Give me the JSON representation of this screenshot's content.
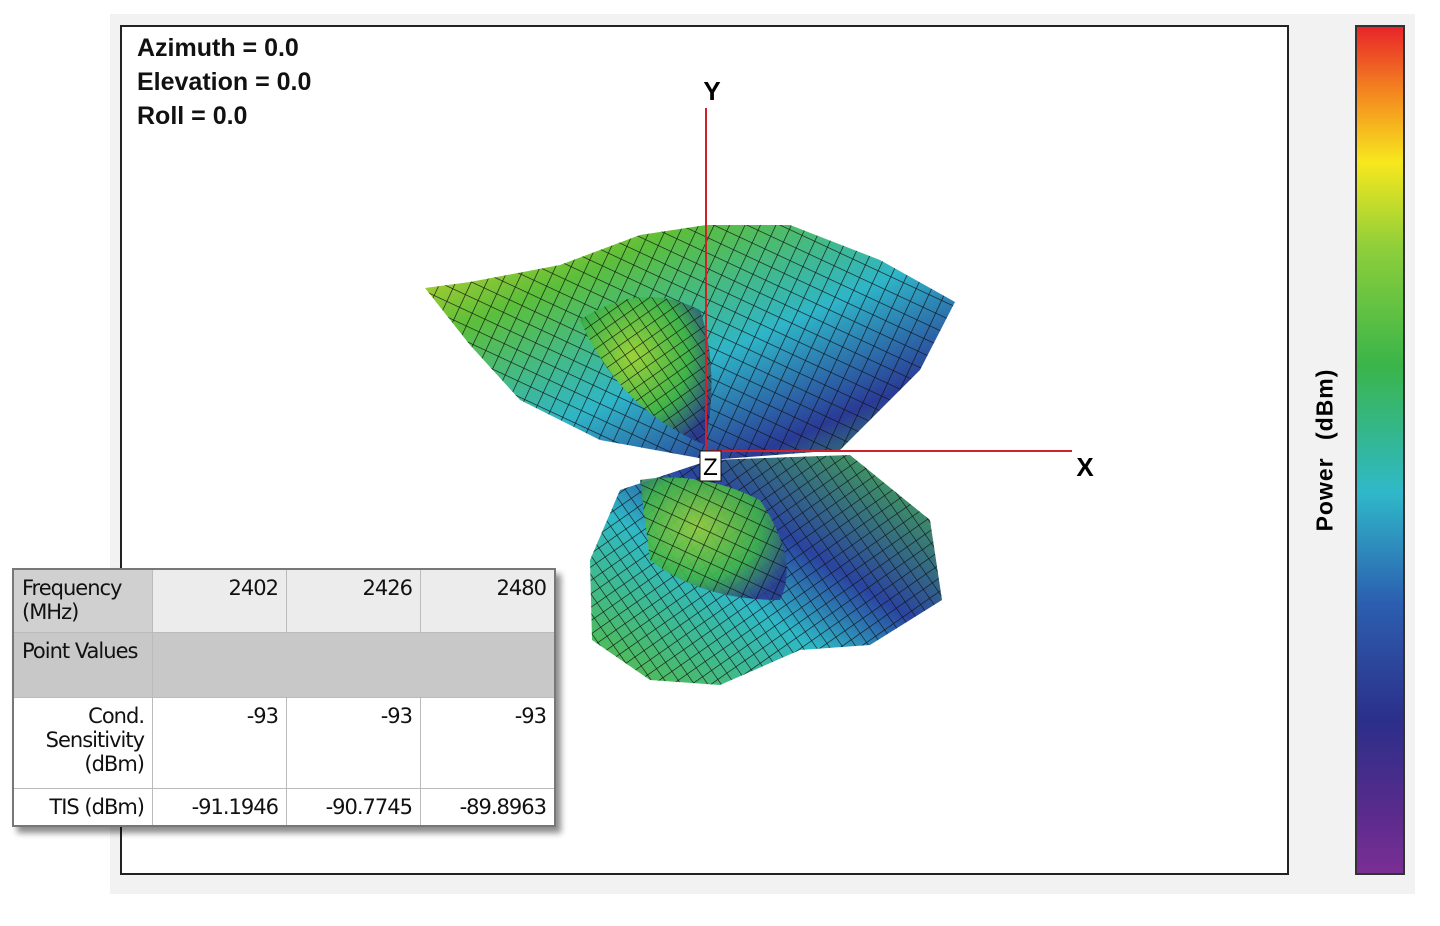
{
  "orientation": {
    "azimuth": "Azimuth = 0.0",
    "elevation": "Elevation = 0.0",
    "roll": "Roll = 0.0"
  },
  "axes": {
    "y": "Y",
    "x": "X",
    "z": "Z"
  },
  "colorbar": {
    "label": "Power (dBm)"
  },
  "table": {
    "header": [
      "Frequency (MHz)",
      "2402",
      "2426",
      "2480"
    ],
    "section": "Point Values",
    "rows": [
      [
        "Cond. Sensitivity (dBm)",
        "-93",
        "-93",
        "-93"
      ],
      [
        "TIS (dBm)",
        "-91.1946",
        "-90.7745",
        "-89.8963"
      ]
    ]
  }
}
